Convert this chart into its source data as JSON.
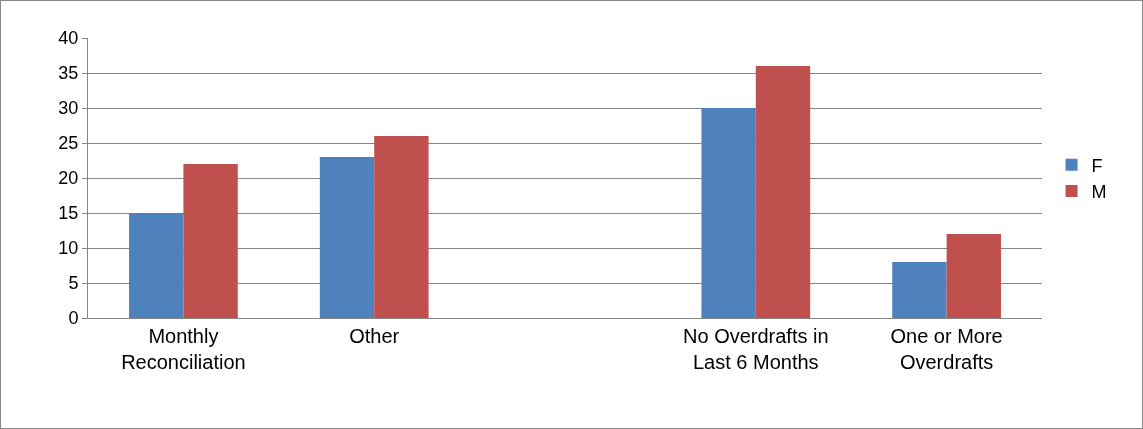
{
  "chart_data": {
    "type": "bar",
    "categories": [
      "Monthly Reconciliation",
      "Other",
      null,
      "No Overdrafts in Last 6 Months",
      "One or More Overdrafts"
    ],
    "series": [
      {
        "name": "F",
        "color": "#4f81bd",
        "values": [
          15,
          23,
          null,
          30,
          8
        ]
      },
      {
        "name": "M",
        "color": "#c0504d",
        "values": [
          22,
          26,
          null,
          36,
          12
        ]
      }
    ],
    "ylim": [
      0,
      40
    ],
    "yticks": [
      0,
      5,
      10,
      15,
      20,
      25,
      30,
      35,
      40
    ],
    "grid": "y",
    "legend": "right"
  }
}
